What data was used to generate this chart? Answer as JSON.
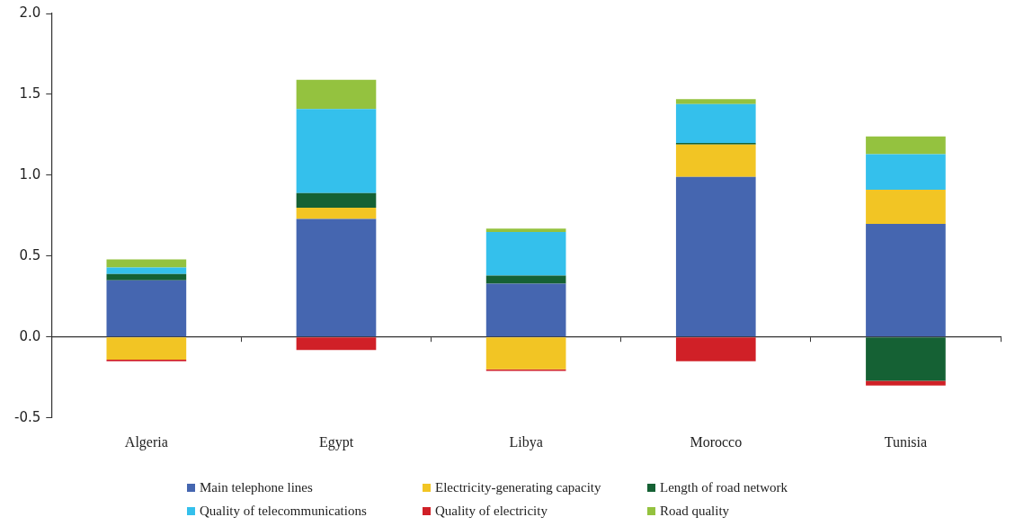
{
  "chart_data": {
    "type": "bar",
    "stacked": true,
    "categories": [
      "Algeria",
      "Egypt",
      "Libya",
      "Morocco",
      "Tunisia"
    ],
    "series": [
      {
        "name": "Main telephone lines",
        "color": "#4566b0",
        "values": [
          0.35,
          0.73,
          0.33,
          0.99,
          0.7
        ]
      },
      {
        "name": "Electricity-generating capacity",
        "color": "#f2c524",
        "values": [
          -0.14,
          0.07,
          -0.2,
          0.2,
          0.21
        ]
      },
      {
        "name": "Length of road network",
        "color": "#156134",
        "values": [
          0.04,
          0.09,
          0.05,
          0.01,
          -0.27
        ]
      },
      {
        "name": "Quality of telecommunications",
        "color": "#34c0ec",
        "values": [
          0.04,
          0.52,
          0.27,
          0.24,
          0.22
        ]
      },
      {
        "name": "Quality of electricity",
        "color": "#d02027",
        "values": [
          -0.01,
          -0.08,
          -0.01,
          -0.15,
          -0.03
        ]
      },
      {
        "name": "Road quality",
        "color": "#94c23f",
        "values": [
          0.05,
          0.18,
          0.02,
          0.03,
          0.11
        ]
      }
    ],
    "ylim": [
      -0.5,
      2.0
    ],
    "yticks": [
      {
        "value": -0.5,
        "label": "-0.5"
      },
      {
        "value": 0,
        "label": "0.0"
      },
      {
        "value": 0.5,
        "label": "0.5"
      },
      {
        "value": 1,
        "label": "1.0"
      },
      {
        "value": 1.5,
        "label": "1.5"
      },
      {
        "value": 2,
        "label": "2.0"
      }
    ],
    "legend": "bottom"
  }
}
